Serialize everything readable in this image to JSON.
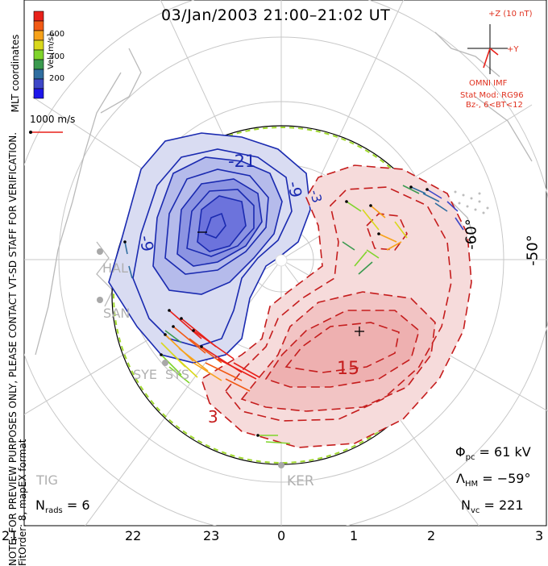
{
  "title": "03/Jan/2003 21:00–21:02 UT",
  "side_note_line1": "NOTE: FOR PREVIEW PURPOSES ONLY, PLEASE CONTACT VT-SD STAFF FOR VERIFICATION.",
  "side_note_line2": "FitOrder: 8, mapEX format",
  "coordinate_label": "MLT coordinates",
  "colorbar": {
    "label": "Vel [m/s]",
    "ticks": [
      "600",
      "400",
      "200"
    ],
    "colors": [
      "#e8211a",
      "#f25a15",
      "#f7a21a",
      "#d9d81c",
      "#7fd42b",
      "#3a9a4f",
      "#2f6ea0",
      "#3d47c8",
      "#1d16ea"
    ]
  },
  "scale_vector_label": "1000 m/s",
  "imf": {
    "z_label": "+Z (10 nT)",
    "y_label": "+Y",
    "source_label": "OMNI IMF",
    "model_line1": "Stat Mod: RG96",
    "model_line2": "Bz-, 6<BT<12"
  },
  "contour_labels": [
    "-21",
    "-9",
    "-9",
    "-3",
    "3",
    "15"
  ],
  "latitude_labels": [
    "-60°",
    "-50°"
  ],
  "stations": [
    "HAL",
    "SAN",
    "SYE",
    "SYS",
    "TIG",
    "KER"
  ],
  "stats": {
    "phi_symbol": "Φ",
    "phi_sub": "pc",
    "phi_value": "= 61 kV",
    "lambda_symbol": "Λ",
    "lambda_sub": "HM",
    "lambda_value": "= −59°",
    "nvc_symbol": "N",
    "nvc_sub": "vc",
    "nvc_value": "= 221",
    "nrads_symbol": "N",
    "nrads_sub": "rads",
    "nrads_value": "= 6"
  },
  "mlt_ticks": [
    "21",
    "22",
    "23",
    "0",
    "1",
    "2",
    "3"
  ],
  "icon_names": [
    "polar-convection-map",
    "potential-minimum-marker",
    "potential-maximum-marker"
  ]
}
